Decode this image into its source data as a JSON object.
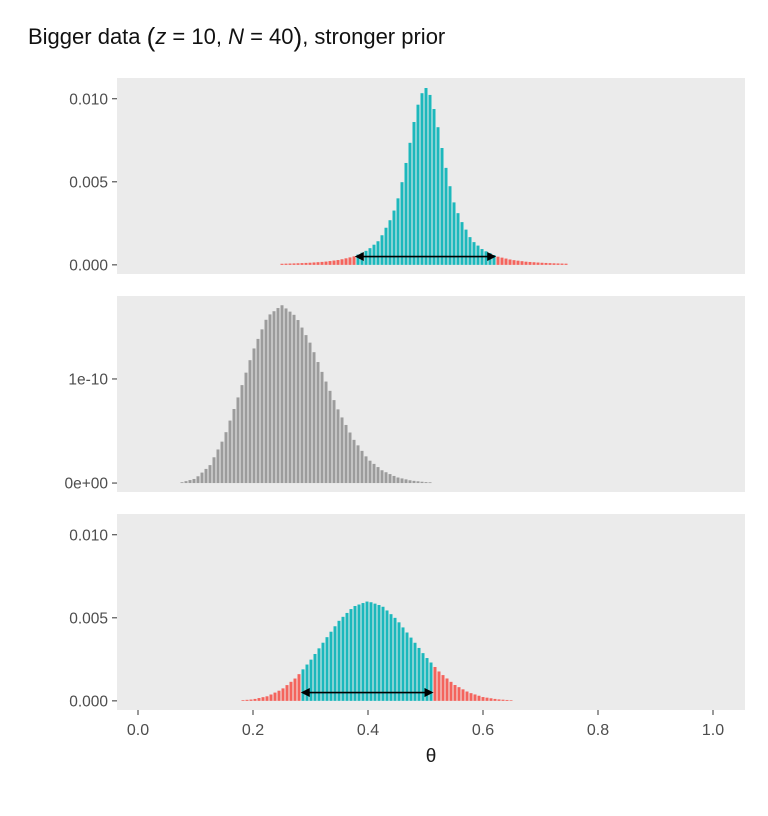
{
  "title_segments": [
    {
      "t": "Bigger data ",
      "s": "n"
    },
    {
      "t": "(",
      "s": "p"
    },
    {
      "t": "z",
      "s": "i"
    },
    {
      "t": " = 10, ",
      "s": "n"
    },
    {
      "t": "N",
      "s": "i"
    },
    {
      "t": " = 40",
      "s": "n"
    },
    {
      "t": ")",
      "s": "p"
    },
    {
      "t": ", stronger prior",
      "s": "n"
    }
  ],
  "chart_data": {
    "type": "bar",
    "title": "Bigger data (z = 10, N = 40), stronger prior",
    "xlabel": "θ",
    "panel_bg": "#EBEBEB",
    "axis_text_color": "#4d4d4d",
    "tick_mark_color": "#333333",
    "x_ticks": {
      "values": [
        0.0,
        0.2,
        0.4,
        0.6,
        0.8,
        1.0
      ],
      "labels": [
        "0.0",
        "0.2",
        "0.4",
        "0.6",
        "0.8",
        "1.0"
      ]
    },
    "panels": [
      {
        "id": "prior",
        "color": "#1CB8BC",
        "tail_color": "#F4645D",
        "ylim_display": [
          -0.00055,
          0.01125
        ],
        "y_ticks": {
          "values": [
            0,
            0.005,
            0.01
          ],
          "labels": [
            "0.000",
            "0.005",
            "0.010"
          ]
        },
        "hdi": {
          "lo": 0.377,
          "hi": 0.623,
          "arrow_y": 0.0005
        },
        "points": [
          [
            0.25,
            6.6e-05
          ],
          [
            0.275,
            9.1e-05
          ],
          [
            0.3,
            0.00013
          ],
          [
            0.325,
            0.00019
          ],
          [
            0.35,
            0.0003
          ],
          [
            0.375,
            0.0005
          ],
          [
            0.4,
            0.0009
          ],
          [
            0.42,
            0.0015
          ],
          [
            0.44,
            0.0028
          ],
          [
            0.45,
            0.0037
          ],
          [
            0.46,
            0.0051
          ],
          [
            0.47,
            0.0068
          ],
          [
            0.48,
            0.0086
          ],
          [
            0.49,
            0.0101
          ],
          [
            0.5,
            0.0107
          ],
          [
            0.51,
            0.0101
          ],
          [
            0.52,
            0.0086
          ],
          [
            0.53,
            0.0068
          ],
          [
            0.54,
            0.0051
          ],
          [
            0.55,
            0.0037
          ],
          [
            0.56,
            0.0028
          ],
          [
            0.58,
            0.0015
          ],
          [
            0.6,
            0.0009
          ],
          [
            0.625,
            0.0005
          ],
          [
            0.65,
            0.0003
          ],
          [
            0.675,
            0.00019
          ],
          [
            0.7,
            0.00013
          ],
          [
            0.725,
            9.1e-05
          ],
          [
            0.75,
            6.6e-05
          ]
        ]
      },
      {
        "id": "likelihood",
        "color": "#9C9C9C",
        "ylim_display": [
          -8.6e-12,
          1.797e-10
        ],
        "y_ticks": {
          "values": [
            0,
            1e-10
          ],
          "labels": [
            "0e+00",
            "1e-10"
          ]
        },
        "points": [
          [
            0.075,
            5.5e-13
          ],
          [
            0.1,
            4.3e-12
          ],
          [
            0.125,
            1.7e-11
          ],
          [
            0.15,
            4.4e-11
          ],
          [
            0.175,
            8.4e-11
          ],
          [
            0.2,
            1.27e-10
          ],
          [
            0.225,
            1.6e-10
          ],
          [
            0.25,
            1.71e-10
          ],
          [
            0.275,
            1.6e-10
          ],
          [
            0.3,
            1.34e-10
          ],
          [
            0.325,
            1e-10
          ],
          [
            0.35,
            6.8e-11
          ],
          [
            0.375,
            4.2e-11
          ],
          [
            0.4,
            2.3e-11
          ],
          [
            0.425,
            1.2e-11
          ],
          [
            0.45,
            5.6e-12
          ],
          [
            0.475,
            2.4e-12
          ],
          [
            0.5,
            9e-13
          ],
          [
            0.525,
            3.2e-13
          ],
          [
            0.55,
            1e-13
          ]
        ]
      },
      {
        "id": "posterior",
        "color": "#1CB8BC",
        "tail_color": "#F4645D",
        "ylim_display": [
          -0.00055,
          0.01125
        ],
        "y_ticks": {
          "values": [
            0,
            0.005,
            0.01
          ],
          "labels": [
            "0.000",
            "0.005",
            "0.010"
          ]
        },
        "hdi": {
          "lo": 0.283,
          "hi": 0.514,
          "arrow_y": 0.0005
        },
        "points": [
          [
            0.175,
            2.3e-05
          ],
          [
            0.2,
            9e-05
          ],
          [
            0.225,
            0.00028
          ],
          [
            0.25,
            0.00069
          ],
          [
            0.275,
            0.0014
          ],
          [
            0.3,
            0.00244
          ],
          [
            0.325,
            0.00366
          ],
          [
            0.35,
            0.00484
          ],
          [
            0.375,
            0.00568
          ],
          [
            0.4,
            0.006
          ],
          [
            0.425,
            0.0057
          ],
          [
            0.45,
            0.0049
          ],
          [
            0.475,
            0.0038
          ],
          [
            0.5,
            0.00268
          ],
          [
            0.525,
            0.00171
          ],
          [
            0.55,
            0.00098
          ],
          [
            0.575,
            0.00051
          ],
          [
            0.6,
            0.00023
          ],
          [
            0.625,
            9.5e-05
          ],
          [
            0.65,
            3.4e-05
          ]
        ]
      }
    ]
  }
}
